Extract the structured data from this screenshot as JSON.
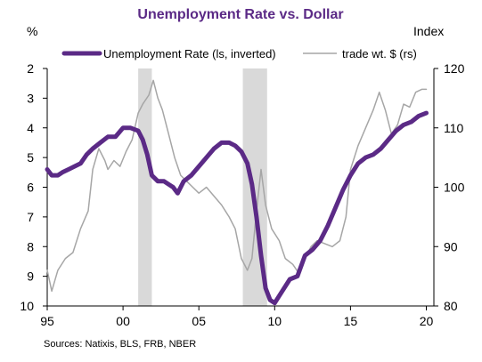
{
  "chart_data": {
    "type": "line",
    "title": "Unemployment Rate vs. Dollar",
    "left_axis_unit": "%",
    "right_axis_unit": "Index",
    "source": "Sources:  Natixis, BLS,  FRB, NBER",
    "x_ticks": [
      "95",
      "00",
      "05",
      "10",
      "15",
      "20"
    ],
    "x_tick_years": [
      1995,
      2000,
      2005,
      2010,
      2015,
      2020
    ],
    "xlim": [
      1995,
      2020.5
    ],
    "left_axis": {
      "ylim": [
        2,
        10
      ],
      "inverted": true,
      "ticks": [
        2,
        3,
        4,
        5,
        6,
        7,
        8,
        9,
        10
      ]
    },
    "right_axis": {
      "ylim": [
        80,
        120
      ],
      "ticks": [
        80,
        90,
        100,
        110,
        120
      ]
    },
    "recessions": [
      {
        "start": 2001.0,
        "end": 2001.9
      },
      {
        "start": 2007.9,
        "end": 2009.5
      }
    ],
    "series": [
      {
        "name": "Unemployment Rate (ls, inverted)",
        "axis": "left",
        "color": "#5b2a86",
        "points": [
          [
            1995.0,
            5.4
          ],
          [
            1995.3,
            5.6
          ],
          [
            1995.7,
            5.6
          ],
          [
            1996.0,
            5.5
          ],
          [
            1996.4,
            5.4
          ],
          [
            1996.8,
            5.3
          ],
          [
            1997.2,
            5.2
          ],
          [
            1997.6,
            4.9
          ],
          [
            1998.0,
            4.7
          ],
          [
            1998.5,
            4.5
          ],
          [
            1999.0,
            4.3
          ],
          [
            1999.5,
            4.3
          ],
          [
            2000.0,
            4.0
          ],
          [
            2000.5,
            4.0
          ],
          [
            2001.0,
            4.1
          ],
          [
            2001.3,
            4.4
          ],
          [
            2001.6,
            4.9
          ],
          [
            2001.9,
            5.6
          ],
          [
            2002.3,
            5.8
          ],
          [
            2002.7,
            5.8
          ],
          [
            2003.0,
            5.9
          ],
          [
            2003.3,
            6.0
          ],
          [
            2003.6,
            6.2
          ],
          [
            2004.0,
            5.8
          ],
          [
            2004.5,
            5.6
          ],
          [
            2005.0,
            5.3
          ],
          [
            2005.5,
            5.0
          ],
          [
            2006.0,
            4.7
          ],
          [
            2006.5,
            4.5
          ],
          [
            2007.0,
            4.5
          ],
          [
            2007.4,
            4.6
          ],
          [
            2007.8,
            4.8
          ],
          [
            2008.2,
            5.2
          ],
          [
            2008.5,
            5.9
          ],
          [
            2008.8,
            7.0
          ],
          [
            2009.1,
            8.3
          ],
          [
            2009.4,
            9.4
          ],
          [
            2009.7,
            9.8
          ],
          [
            2010.0,
            9.9
          ],
          [
            2010.5,
            9.5
          ],
          [
            2011.0,
            9.1
          ],
          [
            2011.5,
            9.0
          ],
          [
            2012.0,
            8.3
          ],
          [
            2012.5,
            8.1
          ],
          [
            2013.0,
            7.8
          ],
          [
            2013.5,
            7.3
          ],
          [
            2014.0,
            6.7
          ],
          [
            2014.5,
            6.1
          ],
          [
            2015.0,
            5.6
          ],
          [
            2015.5,
            5.2
          ],
          [
            2016.0,
            5.0
          ],
          [
            2016.5,
            4.9
          ],
          [
            2017.0,
            4.7
          ],
          [
            2017.5,
            4.4
          ],
          [
            2018.0,
            4.1
          ],
          [
            2018.5,
            3.9
          ],
          [
            2019.0,
            3.8
          ],
          [
            2019.5,
            3.6
          ],
          [
            2020.0,
            3.5
          ]
        ]
      },
      {
        "name": "trade wt. $ (rs)",
        "axis": "right",
        "color": "#a6a6a6",
        "points": [
          [
            1995.0,
            86.0
          ],
          [
            1995.3,
            82.5
          ],
          [
            1995.7,
            86.0
          ],
          [
            1996.2,
            88.0
          ],
          [
            1996.7,
            89.0
          ],
          [
            1997.2,
            93.0
          ],
          [
            1997.7,
            96.0
          ],
          [
            1998.0,
            103.0
          ],
          [
            1998.4,
            106.5
          ],
          [
            1998.8,
            104.5
          ],
          [
            1999.0,
            103.0
          ],
          [
            1999.4,
            104.5
          ],
          [
            1999.8,
            103.5
          ],
          [
            2000.2,
            106.0
          ],
          [
            2000.6,
            108.0
          ],
          [
            2001.0,
            112.5
          ],
          [
            2001.3,
            114.0
          ],
          [
            2001.7,
            115.5
          ],
          [
            2002.0,
            118.0
          ],
          [
            2002.3,
            115.0
          ],
          [
            2002.6,
            113.0
          ],
          [
            2003.0,
            109.0
          ],
          [
            2003.4,
            105.0
          ],
          [
            2003.8,
            102.0
          ],
          [
            2004.2,
            101.0
          ],
          [
            2004.6,
            100.0
          ],
          [
            2005.0,
            99.0
          ],
          [
            2005.5,
            100.0
          ],
          [
            2006.0,
            98.5
          ],
          [
            2006.5,
            97.0
          ],
          [
            2007.0,
            95.0
          ],
          [
            2007.4,
            93.0
          ],
          [
            2007.8,
            88.0
          ],
          [
            2008.2,
            86.0
          ],
          [
            2008.5,
            88.0
          ],
          [
            2008.8,
            96.0
          ],
          [
            2009.1,
            103.0
          ],
          [
            2009.4,
            97.0
          ],
          [
            2009.8,
            93.0
          ],
          [
            2010.3,
            91.0
          ],
          [
            2010.7,
            88.0
          ],
          [
            2011.2,
            87.0
          ],
          [
            2011.6,
            85.5
          ],
          [
            2012.0,
            88.0
          ],
          [
            2012.4,
            90.0
          ],
          [
            2012.8,
            91.0
          ],
          [
            2013.3,
            90.5
          ],
          [
            2013.8,
            90.0
          ],
          [
            2014.3,
            91.0
          ],
          [
            2014.7,
            95.0
          ],
          [
            2015.0,
            103.0
          ],
          [
            2015.5,
            107.0
          ],
          [
            2016.0,
            110.0
          ],
          [
            2016.5,
            113.0
          ],
          [
            2016.9,
            116.0
          ],
          [
            2017.3,
            113.0
          ],
          [
            2017.7,
            109.0
          ],
          [
            2018.1,
            110.5
          ],
          [
            2018.5,
            114.0
          ],
          [
            2018.9,
            113.5
          ],
          [
            2019.3,
            116.0
          ],
          [
            2019.7,
            116.5
          ],
          [
            2020.0,
            116.5
          ]
        ]
      }
    ]
  }
}
